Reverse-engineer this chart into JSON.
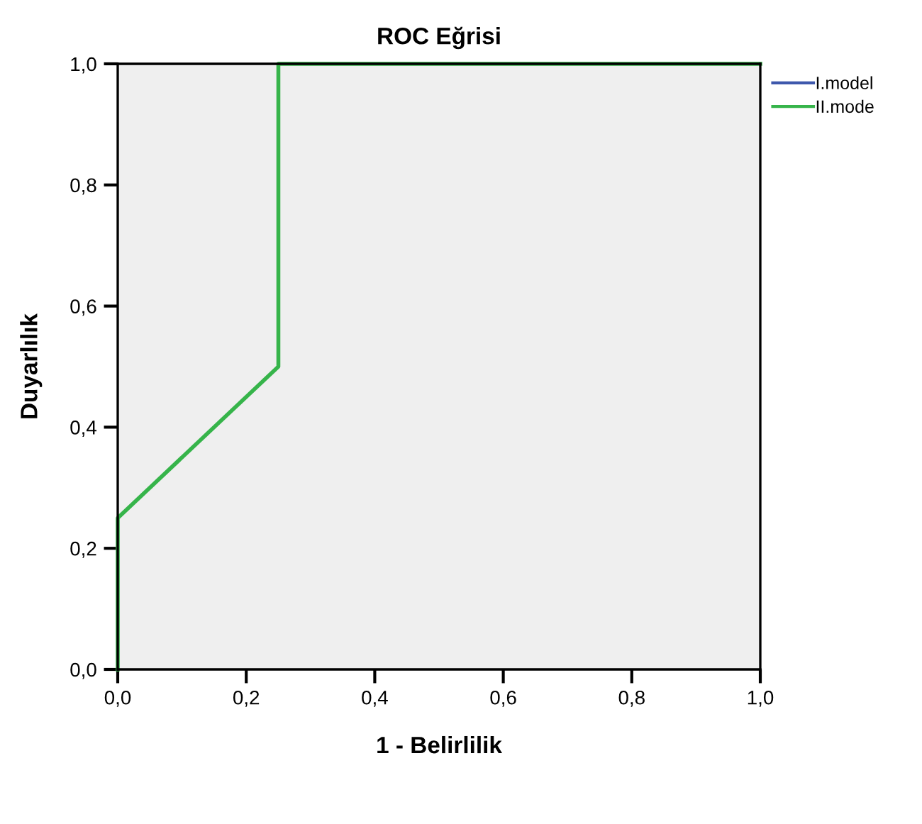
{
  "chart_data": {
    "type": "line",
    "title": "ROC Eğrisi",
    "xlabel": "1 - Belirlilik",
    "ylabel": "Duyarlılık",
    "x": [
      0,
      0,
      0.25,
      0.25,
      1
    ],
    "series": [
      {
        "name": "I.model",
        "color": "#3e58ac",
        "values": [
          null,
          null,
          null,
          null,
          null
        ]
      },
      {
        "name": "II.mode",
        "color": "#36b44a",
        "values": [
          0,
          0.25,
          0.5,
          1,
          1
        ]
      }
    ],
    "xlim": [
      0,
      1
    ],
    "ylim": [
      0,
      1
    ],
    "xticks": [
      {
        "value": 0,
        "label": "0,0"
      },
      {
        "value": 0.2,
        "label": "0,2"
      },
      {
        "value": 0.4,
        "label": "0,4"
      },
      {
        "value": 0.6,
        "label": "0,6"
      },
      {
        "value": 0.8,
        "label": "0,8"
      },
      {
        "value": 1,
        "label": "1,0"
      }
    ],
    "yticks": [
      {
        "value": 0,
        "label": "0,0"
      },
      {
        "value": 0.2,
        "label": "0,2"
      },
      {
        "value": 0.4,
        "label": "0,4"
      },
      {
        "value": 0.6,
        "label": "0,6"
      },
      {
        "value": 0.8,
        "label": "0,8"
      },
      {
        "value": 1,
        "label": "1,0"
      }
    ],
    "grid": false,
    "legend": "top right",
    "marker": "none",
    "line_style": "solid"
  }
}
